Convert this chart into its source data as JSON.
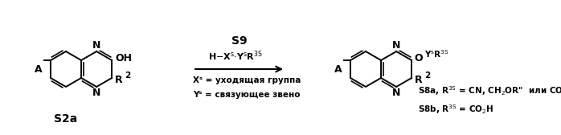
{
  "background_color": "#ffffff",
  "figsize": [
    6.98,
    1.68
  ],
  "dpi": 100,
  "s2a_label": "S2a",
  "s9_label": "S9",
  "xs_def": "Xˢ = уходящая группа",
  "ys_def": "Yˢ = связующее звено"
}
